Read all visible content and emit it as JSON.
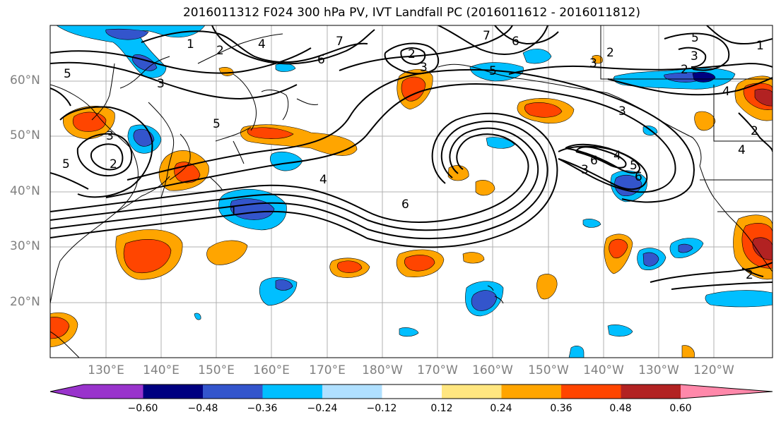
{
  "title": "2016011312 F024 300 hPa PV, IVT Landfall PC (2016011612 - 2016011812)",
  "lat_labels": [
    "60°N",
    "50°N",
    "40°N",
    "30°N",
    "20°N"
  ],
  "lon_labels": [
    "130°E",
    "140°E",
    "150°E",
    "160°E",
    "170°E",
    "180°W",
    "170°W",
    "160°W",
    "150°W",
    "140°W",
    "130°W",
    "120°W"
  ],
  "contour_labels": [
    "1",
    "2",
    "3",
    "4",
    "5",
    "6",
    "7"
  ],
  "colorbar": {
    "ticks": [
      "−0.60",
      "−0.48",
      "−0.36",
      "−0.24",
      "−0.12",
      "0.12",
      "0.24",
      "0.36",
      "0.48",
      "0.60"
    ],
    "colors": [
      "#9933cc",
      "#000080",
      "#3355cc",
      "#00bfff",
      "#b0e0ff",
      "#ffffff",
      "#ffe680",
      "#ffa500",
      "#ff4500",
      "#b22222",
      "#ff88aa"
    ]
  }
}
